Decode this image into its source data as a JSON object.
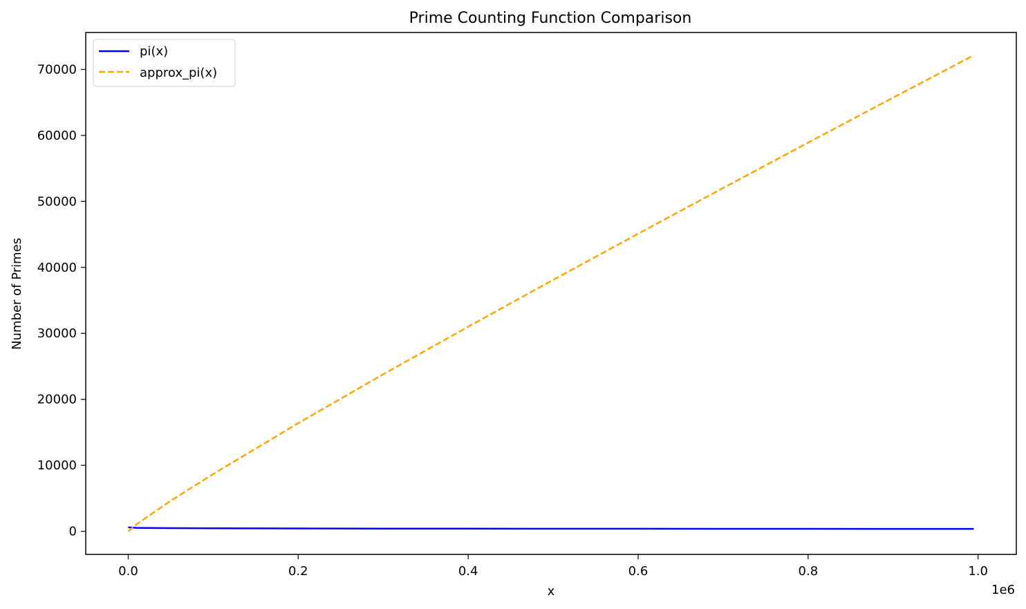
{
  "chart_data": {
    "type": "line",
    "title": "Prime Counting Function Comparison",
    "xlabel": "x",
    "ylabel": "Number of Primes",
    "x_offset_label": "1e6",
    "xlim": [
      -50000,
      1045000
    ],
    "ylim": [
      -3500,
      75600
    ],
    "x_ticks": [
      0,
      200000,
      400000,
      600000,
      800000,
      1000000
    ],
    "x_tick_labels": [
      "0.0",
      "0.2",
      "0.4",
      "0.6",
      "0.8",
      "1.0"
    ],
    "y_ticks": [
      0,
      10000,
      20000,
      30000,
      40000,
      50000,
      60000,
      70000
    ],
    "y_tick_labels": [
      "0",
      "10000",
      "20000",
      "30000",
      "40000",
      "50000",
      "60000",
      "70000"
    ],
    "grid": false,
    "legend_position": "top-left",
    "series": [
      {
        "name": "pi(x)",
        "color": "#0000ff",
        "style": "solid",
        "x": [
          2,
          10000,
          50000,
          100000,
          200000,
          300000,
          400000,
          500000,
          600000,
          700000,
          800000,
          900000,
          995000
        ],
        "y": [
          600,
          520,
          480,
          460,
          430,
          410,
          400,
          390,
          385,
          380,
          375,
          370,
          365
        ]
      },
      {
        "name": "approx_pi(x)",
        "color": "#ffa500",
        "style": "dashed",
        "x": [
          2,
          10000,
          50000,
          100000,
          200000,
          300000,
          400000,
          500000,
          600000,
          700000,
          800000,
          900000,
          995000
        ],
        "y": [
          0,
          1086,
          4621,
          8686,
          16385,
          23788,
          31009,
          38102,
          45102,
          52029,
          58897,
          65717,
          72154
        ]
      }
    ]
  }
}
